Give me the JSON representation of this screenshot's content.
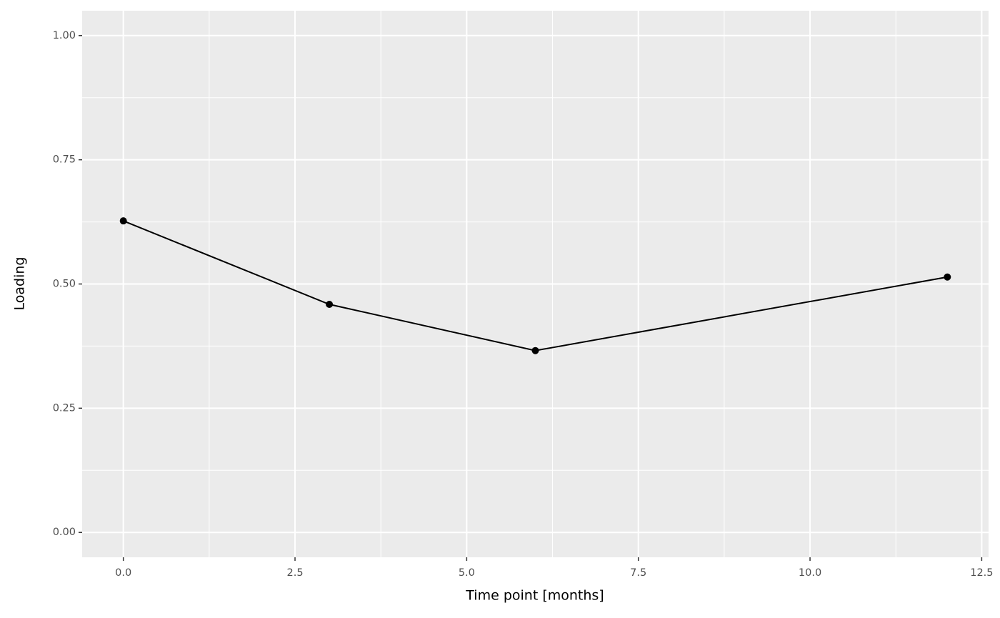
{
  "chart_data": {
    "type": "line",
    "x_label": "Time point [months]",
    "y_label": "Loading",
    "x": [
      0,
      3,
      6,
      12
    ],
    "series": [
      {
        "color": "#000000",
        "values": [
          0.627,
          0.459,
          0.366,
          0.514
        ]
      }
    ],
    "xlim": [
      -0.6,
      12.6
    ],
    "ylim": [
      -0.05,
      1.05
    ],
    "xticks": [
      {
        "value": 0,
        "label": "0.0"
      },
      {
        "value": 2.5,
        "label": "2.5"
      },
      {
        "value": 5,
        "label": "5.0"
      },
      {
        "value": 7.5,
        "label": "7.5"
      },
      {
        "value": 10,
        "label": "10.0"
      },
      {
        "value": 12.5,
        "label": "12.5"
      }
    ],
    "yticks": [
      {
        "value": 0,
        "label": "0.00"
      },
      {
        "value": 0.25,
        "label": "0.25"
      },
      {
        "value": 0.5,
        "label": "0.50"
      },
      {
        "value": 0.75,
        "label": "0.75"
      },
      {
        "value": 1,
        "label": "1.00"
      }
    ],
    "x_minor_grid": [
      1.25,
      3.75,
      6.25,
      8.75,
      11.25
    ],
    "y_minor_grid": [
      0.125,
      0.375,
      0.625,
      0.875
    ],
    "grid": true,
    "panel_color": "#ebebeb"
  }
}
